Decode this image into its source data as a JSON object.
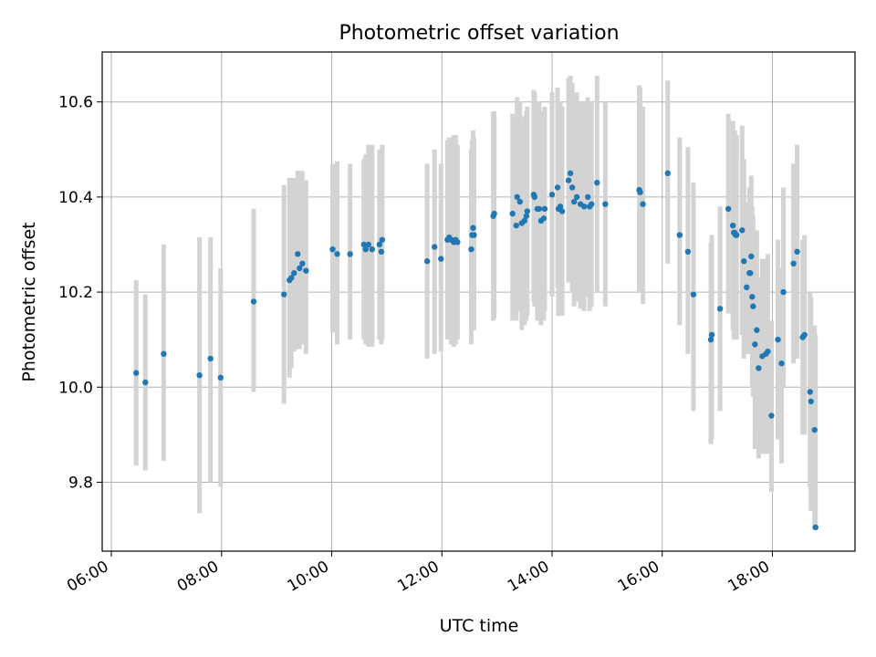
{
  "chart_data": {
    "type": "scatter",
    "title": "Photometric offset variation",
    "xlabel": "UTC time",
    "ylabel": "Photometric offset",
    "x_unit": "UTC time (HH:MM)",
    "xlim": [
      "05:50",
      "19:30"
    ],
    "ylim": [
      9.655,
      10.705
    ],
    "x_ticks": [
      "06:00",
      "08:00",
      "10:00",
      "12:00",
      "14:00",
      "16:00",
      "18:00"
    ],
    "y_ticks": [
      9.8,
      10.0,
      10.2,
      10.4,
      10.6
    ],
    "y_tick_labels": [
      "9.8",
      "10.0",
      "10.2",
      "10.4",
      "10.6"
    ],
    "grid": true,
    "errorbars": true,
    "point_color": "#1f77b4",
    "errorbar_color": "#d3d3d3",
    "series": [
      {
        "x": [
          "06:27",
          "06:37",
          "06:57",
          "07:36",
          "07:48",
          "07:59",
          "08:35",
          "09:08",
          "09:14",
          "09:16",
          "09:19",
          "09:23",
          "09:25",
          "09:28",
          "09:32",
          "10:01",
          "10:06",
          "10:20",
          "10:35",
          "10:37",
          "10:40",
          "10:44",
          "10:52",
          "10:54",
          "10:55",
          "11:44",
          "11:52",
          "11:59",
          "12:06",
          "12:08",
          "12:10",
          "12:13",
          "12:15",
          "12:17",
          "12:32",
          "12:33",
          "12:34",
          "12:35",
          "12:56",
          "12:57",
          "13:17",
          "13:21",
          "13:22",
          "13:25",
          "13:27",
          "13:30",
          "13:32",
          "13:33",
          "13:40",
          "13:41",
          "13:44",
          "13:46",
          "13:48",
          "13:51",
          "13:52",
          "14:00",
          "14:06",
          "14:07",
          "14:09",
          "14:11",
          "14:18",
          "14:20",
          "14:22",
          "14:24",
          "14:27",
          "14:31",
          "14:35",
          "14:39",
          "14:41",
          "14:43",
          "14:49",
          "14:58",
          "15:35",
          "15:36",
          "15:39",
          "16:06",
          "16:19",
          "16:28",
          "16:34",
          "16:53",
          "16:54",
          "17:03",
          "17:12",
          "17:17",
          "17:18",
          "17:19",
          "17:20",
          "17:21",
          "17:27",
          "17:29",
          "17:32",
          "17:35",
          "17:36",
          "17:37",
          "17:38",
          "17:39",
          "17:41",
          "17:43",
          "17:45",
          "17:49",
          "17:53",
          "17:55",
          "17:59",
          "18:06",
          "18:10",
          "18:12",
          "18:23",
          "18:27",
          "18:33",
          "18:35",
          "18:41",
          "18:42",
          "18:46",
          "18:47"
        ],
        "y": [
          10.03,
          10.01,
          10.07,
          10.025,
          10.06,
          10.02,
          10.18,
          10.195,
          10.225,
          10.23,
          10.24,
          10.28,
          10.25,
          10.26,
          10.245,
          10.29,
          10.28,
          10.28,
          10.3,
          10.29,
          10.3,
          10.29,
          10.3,
          10.285,
          10.31,
          10.265,
          10.295,
          10.27,
          10.31,
          10.315,
          10.31,
          10.305,
          10.31,
          10.305,
          10.29,
          10.32,
          10.335,
          10.32,
          10.36,
          10.365,
          10.365,
          10.34,
          10.4,
          10.39,
          10.345,
          10.35,
          10.36,
          10.37,
          10.405,
          10.4,
          10.375,
          10.375,
          10.35,
          10.355,
          10.375,
          10.405,
          10.42,
          10.375,
          10.38,
          10.37,
          10.435,
          10.45,
          10.42,
          10.39,
          10.4,
          10.385,
          10.38,
          10.4,
          10.38,
          10.385,
          10.43,
          10.385,
          10.415,
          10.41,
          10.385,
          10.45,
          10.32,
          10.285,
          10.195,
          10.1,
          10.11,
          10.165,
          10.375,
          10.34,
          10.325,
          10.325,
          10.32,
          10.32,
          10.33,
          10.265,
          10.21,
          10.24,
          10.24,
          10.275,
          10.19,
          10.17,
          10.09,
          10.12,
          10.04,
          10.065,
          10.07,
          10.075,
          9.94,
          10.1,
          10.05,
          10.2,
          10.26,
          10.285,
          10.105,
          10.11,
          9.99,
          9.97,
          9.91,
          9.705
        ],
        "yerr_low": [
          9.835,
          9.825,
          9.845,
          9.735,
          9.8,
          9.79,
          9.99,
          9.965,
          10.02,
          10.04,
          10.075,
          10.08,
          10.08,
          10.09,
          10.07,
          10.115,
          10.09,
          10.1,
          10.1,
          10.09,
          10.085,
          10.085,
          10.1,
          10.09,
          10.1,
          10.06,
          10.07,
          10.075,
          10.1,
          10.11,
          10.09,
          10.085,
          10.09,
          10.1,
          10.09,
          10.12,
          10.13,
          10.12,
          10.14,
          10.145,
          10.14,
          10.14,
          10.17,
          10.16,
          10.12,
          10.13,
          10.14,
          10.15,
          10.18,
          10.17,
          10.14,
          10.14,
          10.13,
          10.14,
          10.16,
          10.19,
          10.21,
          10.15,
          10.16,
          10.15,
          10.22,
          10.22,
          10.2,
          10.17,
          10.18,
          10.165,
          10.16,
          10.19,
          10.16,
          10.17,
          10.2,
          10.17,
          10.2,
          10.2,
          10.175,
          10.26,
          10.13,
          10.07,
          9.95,
          9.88,
          9.89,
          9.95,
          10.155,
          10.12,
          10.1,
          10.1,
          10.1,
          10.1,
          10.11,
          10.06,
          10.07,
          10.1,
          10.07,
          10.1,
          10.0,
          9.98,
          9.87,
          9.91,
          9.85,
          9.86,
          9.86,
          9.86,
          9.78,
          9.89,
          9.84,
          10.0,
          10.05,
          10.06,
          9.9,
          9.9,
          9.79,
          9.74,
          9.7,
          9.7
        ],
        "yerr_high": [
          10.225,
          10.195,
          10.3,
          10.315,
          10.315,
          10.25,
          10.375,
          10.425,
          10.44,
          10.44,
          10.44,
          10.455,
          10.455,
          10.455,
          10.435,
          10.47,
          10.475,
          10.47,
          10.48,
          10.49,
          10.51,
          10.51,
          10.5,
          10.48,
          10.51,
          10.47,
          10.5,
          10.47,
          10.52,
          10.525,
          10.52,
          10.53,
          10.53,
          10.51,
          10.5,
          10.52,
          10.54,
          10.525,
          10.58,
          10.58,
          10.575,
          10.56,
          10.61,
          10.6,
          10.56,
          10.57,
          10.58,
          10.59,
          10.625,
          10.62,
          10.6,
          10.6,
          10.58,
          10.57,
          10.59,
          10.62,
          10.63,
          10.6,
          10.6,
          10.59,
          10.65,
          10.655,
          10.64,
          10.6,
          10.62,
          10.6,
          10.6,
          10.61,
          10.6,
          10.6,
          10.655,
          10.6,
          10.635,
          10.63,
          10.59,
          10.645,
          10.525,
          10.505,
          10.43,
          10.305,
          10.32,
          10.38,
          10.575,
          10.56,
          10.54,
          10.54,
          10.53,
          10.53,
          10.55,
          10.48,
          10.39,
          10.42,
          10.41,
          10.445,
          10.38,
          10.36,
          10.3,
          10.33,
          10.23,
          10.27,
          10.27,
          10.28,
          10.14,
          10.31,
          10.25,
          10.42,
          10.47,
          10.51,
          10.31,
          10.32,
          10.2,
          10.19,
          10.13,
          10.11
        ]
      }
    ]
  }
}
